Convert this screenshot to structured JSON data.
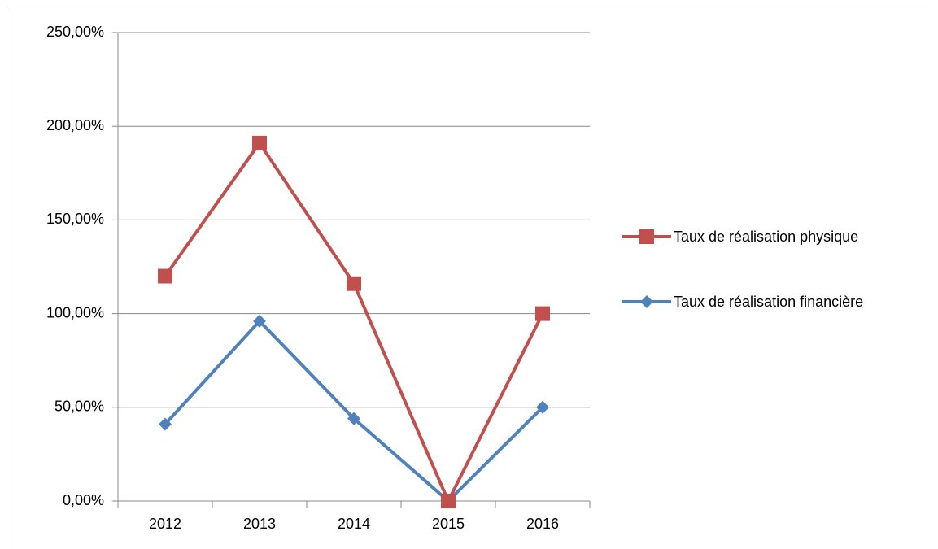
{
  "chart_data": {
    "type": "line",
    "categories": [
      "2012",
      "2013",
      "2014",
      "2015",
      "2016"
    ],
    "series": [
      {
        "name": "Taux de réalisation physique",
        "color": "#c0504d",
        "marker": "square",
        "values": [
          120,
          191,
          116,
          0,
          100
        ]
      },
      {
        "name": "Taux de réalisation financière",
        "color": "#4f81bd",
        "marker": "diamond",
        "values": [
          41,
          96,
          44,
          0,
          50
        ]
      }
    ],
    "ylim": [
      0,
      250
    ],
    "yticks": [
      {
        "value": 0,
        "label": "0,00%"
      },
      {
        "value": 50,
        "label": "50,00%"
      },
      {
        "value": 100,
        "label": "100,00%"
      },
      {
        "value": 150,
        "label": "150,00%"
      },
      {
        "value": 200,
        "label": "200,00%"
      },
      {
        "value": 250,
        "label": "250,00%"
      }
    ],
    "grid": true,
    "legend": "right"
  }
}
